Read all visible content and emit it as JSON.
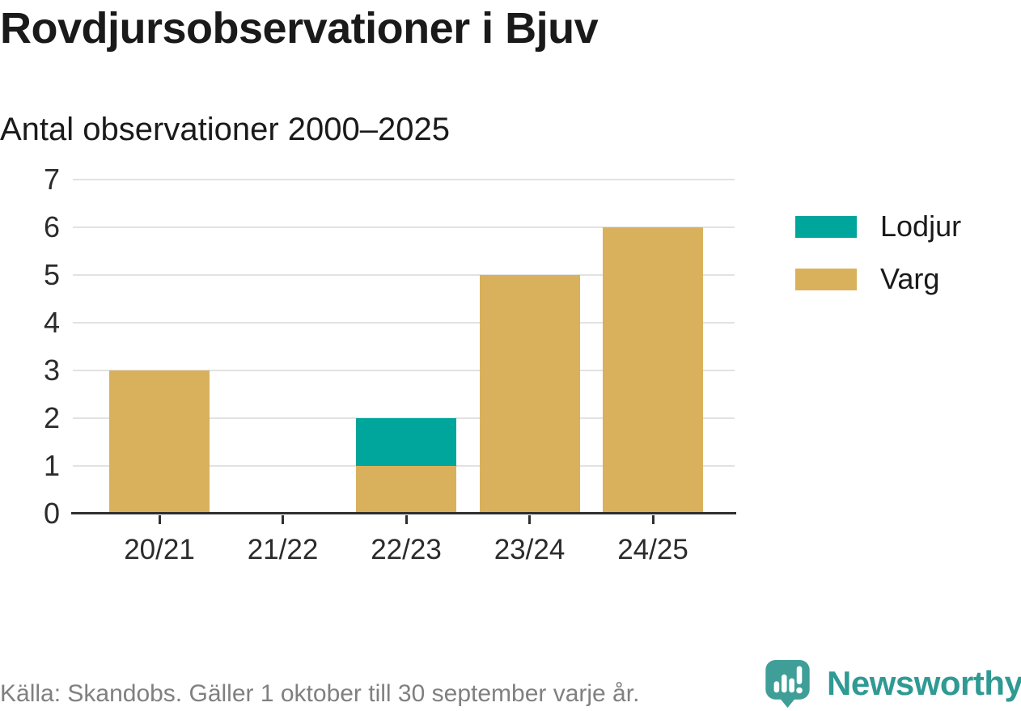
{
  "source": "Källa: Skandobs. Gäller 1 oktober till 30 september varje år.",
  "brand": {
    "name": "Newsworthy",
    "icon": "bar-chart-speech-bubble",
    "icon_color": "#3f9f98",
    "wordmark_color": "#2f9a93"
  },
  "colors": {
    "lodjur": "#00a59c",
    "varg": "#d9b15c",
    "gridline": "#e2e2e2",
    "axis": "#2f2f2f",
    "text": "#1a1a1a",
    "muted_text": "#808080"
  },
  "chart_data": {
    "type": "bar",
    "stacked": true,
    "title": "Rovdjursobservationer i Bjuv",
    "subtitle": "Antal observationer 2000–2025",
    "categories": [
      "20/21",
      "21/22",
      "22/23",
      "23/24",
      "24/25"
    ],
    "series": [
      {
        "name": "Lodjur",
        "color": "#00a59c",
        "values": [
          0,
          0,
          1,
          0,
          0
        ]
      },
      {
        "name": "Varg",
        "color": "#d9b15c",
        "values": [
          3,
          0,
          1,
          5,
          6
        ]
      }
    ],
    "stack_order_bottom_up": [
      "Varg",
      "Lodjur"
    ],
    "totals": [
      3,
      0,
      2,
      5,
      6
    ],
    "xlabel": "",
    "ylabel": "",
    "ylim": [
      0,
      7
    ],
    "yticks": [
      0,
      1,
      2,
      3,
      4,
      5,
      6,
      7
    ],
    "grid": true,
    "legend_position": "right"
  }
}
